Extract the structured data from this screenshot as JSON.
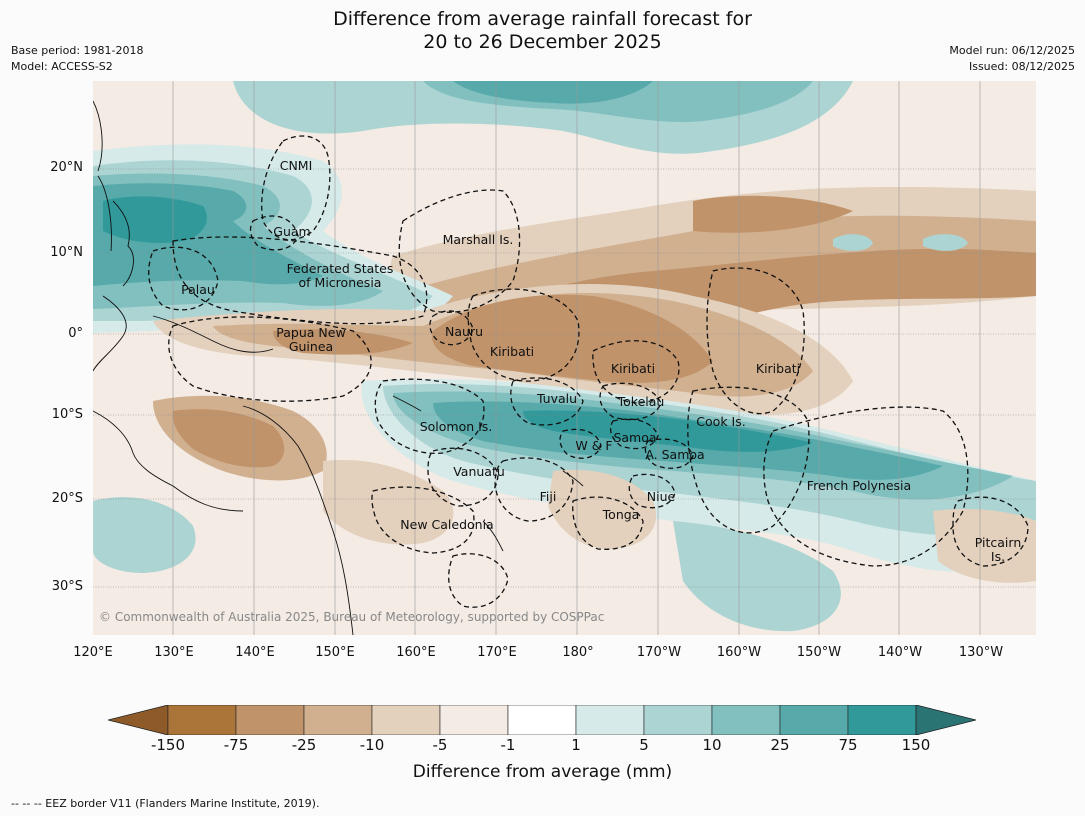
{
  "title": {
    "line1": "Difference from average rainfall forecast for",
    "line2": "20 to 26 December 2025"
  },
  "meta": {
    "base_period": "Base period: 1981-2018",
    "model": "Model: ACCESS-S2",
    "model_run": "Model run: 06/12/2025",
    "issued": "Issued: 08/12/2025"
  },
  "map": {
    "lat_labels": [
      "20°N",
      "10°N",
      "0°",
      "10°S",
      "20°S",
      "30°S"
    ],
    "lon_labels": [
      "120°E",
      "130°E",
      "140°E",
      "150°E",
      "160°E",
      "170°E",
      "180°",
      "170°W",
      "160°W",
      "150°W",
      "140°W",
      "130°W"
    ],
    "regions": [
      {
        "name": "cnmi",
        "text": "CNMI"
      },
      {
        "name": "guam",
        "text": "Guam"
      },
      {
        "name": "marshall-islands",
        "text": "Marshall Is."
      },
      {
        "name": "federated-states-micronesia",
        "text": "Federated States\nof Micronesia"
      },
      {
        "name": "palau",
        "text": "Palau"
      },
      {
        "name": "papua-new-guinea",
        "text": "Papua New\nGuinea"
      },
      {
        "name": "nauru",
        "text": "Nauru"
      },
      {
        "name": "kiribati-west",
        "text": "Kiribati"
      },
      {
        "name": "kiribati-central",
        "text": "Kiribati"
      },
      {
        "name": "kiribati-east",
        "text": "Kiribati"
      },
      {
        "name": "tuvalu",
        "text": "Tuvalu"
      },
      {
        "name": "tokelau",
        "text": "Tokelau"
      },
      {
        "name": "solomon-islands",
        "text": "Solomon Is."
      },
      {
        "name": "samoa",
        "text": "Samoa"
      },
      {
        "name": "wallis-futuna",
        "text": "W & F"
      },
      {
        "name": "american-samoa",
        "text": "A. Samoa"
      },
      {
        "name": "cook-islands",
        "text": "Cook Is."
      },
      {
        "name": "vanuatu",
        "text": "Vanuatu"
      },
      {
        "name": "fiji",
        "text": "Fiji"
      },
      {
        "name": "niue",
        "text": "Niue"
      },
      {
        "name": "tonga",
        "text": "Tonga"
      },
      {
        "name": "french-polynesia",
        "text": "French Polynesia"
      },
      {
        "name": "new-caledonia",
        "text": "New Caledonia"
      },
      {
        "name": "pitcairn-islands",
        "text": "Pitcairn\nIs."
      }
    ],
    "copyright": "© Commonwealth of Australia 2025, Bureau of Meteorology, supported by COSPPac"
  },
  "colorbar": {
    "ticks": [
      "-150",
      "-75",
      "-25",
      "-10",
      "-5",
      "-1",
      "1",
      "5",
      "10",
      "25",
      "75",
      "150"
    ],
    "colors": {
      "lt_-150": "#8e5a2a",
      "b1": "#ab7439",
      "b2": "#c0936a",
      "b3": "#d1b090",
      "b4": "#e3d0bd",
      "b5": "#f3ebe4",
      "b6": "#ffffff",
      "b7": "#d6eae9",
      "b8": "#abd4d3",
      "b9": "#82bfbf",
      "b10": "#57a9aa",
      "b11": "#31999a",
      "gt_150": "#2b7474"
    },
    "label": "Difference from average (mm)"
  },
  "footnote": "--  --  -- EEZ border V11 (Flanders Marine Institute, 2019)."
}
